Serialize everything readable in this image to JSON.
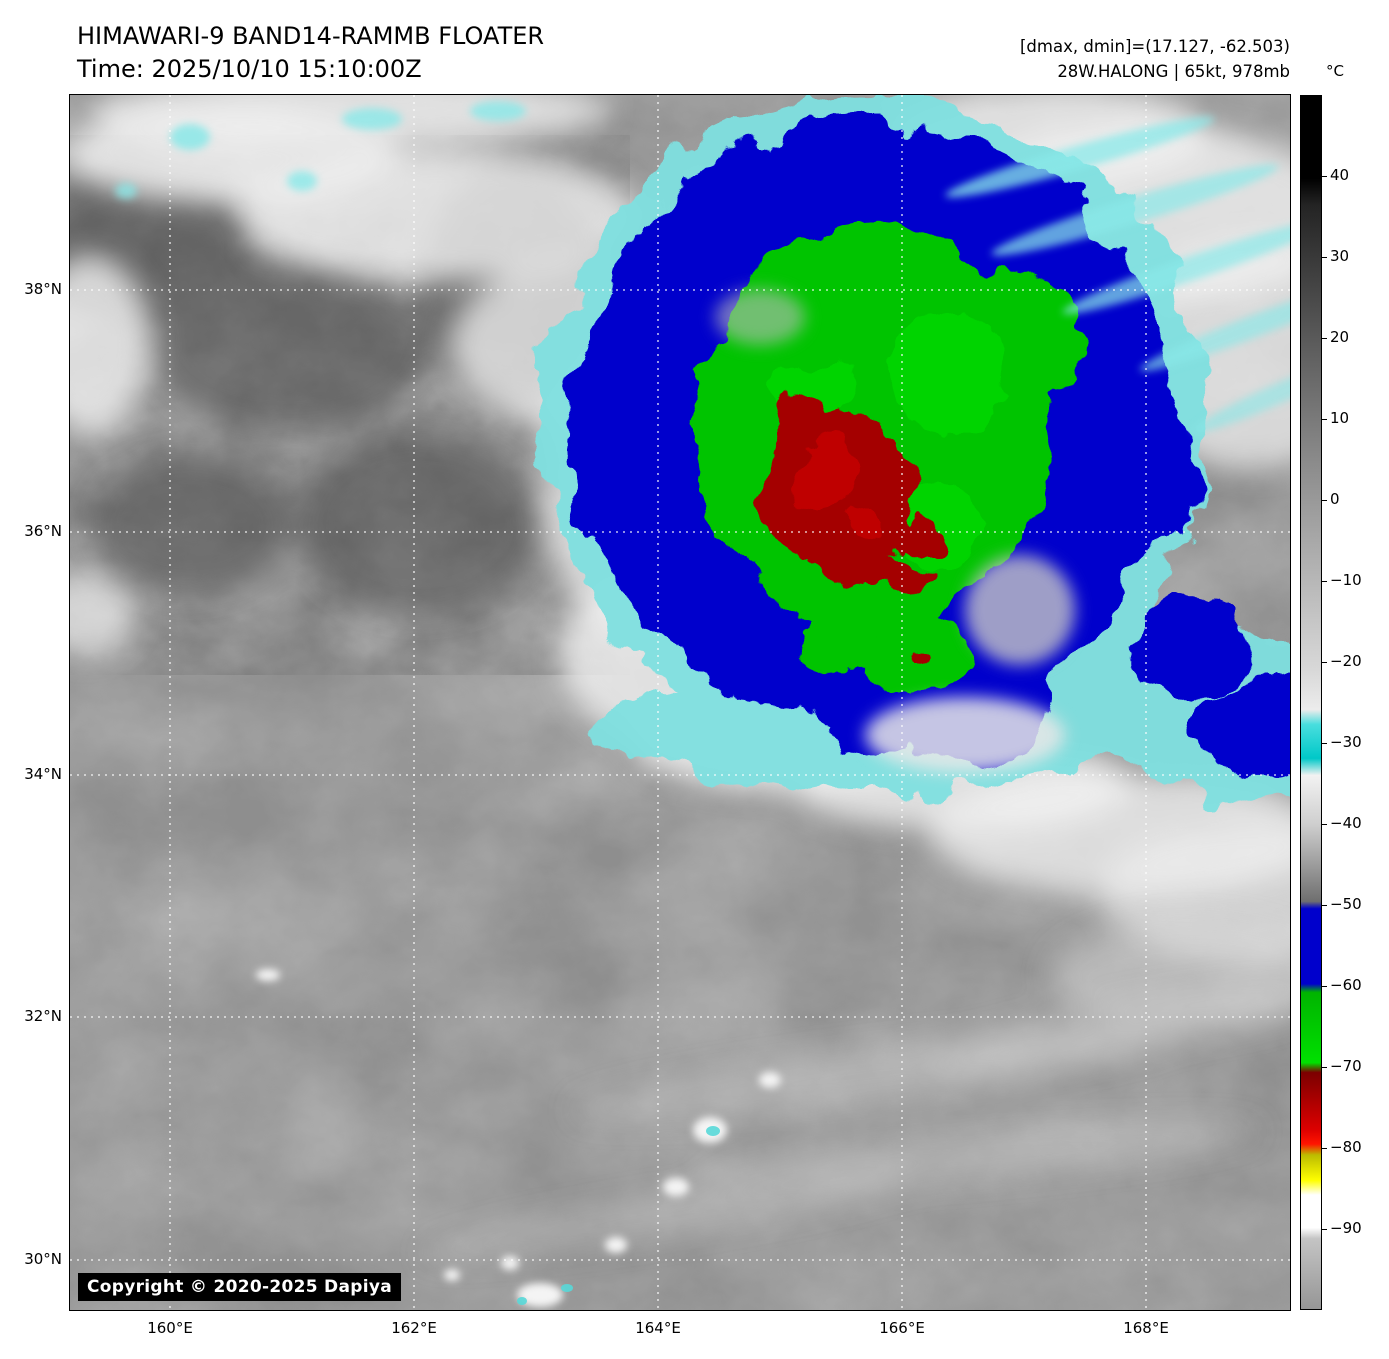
{
  "header": {
    "title": "HIMAWARI-9 BAND14-RAMMB FLOATER",
    "time": "Time: 2025/10/10 15:10:00Z",
    "range": "[dmax, dmin]=(17.127, -62.503)",
    "storm": "28W.HALONG | 65kt, 978mb"
  },
  "map": {
    "copyright": "Copyright © 2020-2025 Dapiya",
    "lat_labels": [
      "38°N",
      "36°N",
      "34°N",
      "32°N",
      "30°N"
    ],
    "lon_labels": [
      "160°E",
      "162°E",
      "164°E",
      "166°E",
      "168°E"
    ]
  },
  "colorbar": {
    "unit": "°C",
    "ticks": [
      "40",
      "30",
      "20",
      "10",
      "0",
      "−10",
      "−20",
      "−30",
      "−40",
      "−50",
      "−60",
      "−70",
      "−80",
      "−90"
    ],
    "segments": [
      {
        "range": "warm to −25",
        "color": "grayscale #000000→#ececec"
      },
      {
        "range": "≈ −30",
        "color": "#00c8c8"
      },
      {
        "range": "−30 to −50",
        "color": "grayscale #f2f2f2→#6f6f6f"
      },
      {
        "range": "−50 to −60",
        "color": "#0000cc"
      },
      {
        "range": "−60 to −70",
        "color": "#00cc00"
      },
      {
        "range": "−70 to −80",
        "color": "#7c0000→#ff1400"
      },
      {
        "range": "−80 to −87",
        "color": "#ffff00"
      },
      {
        "range": "−87 to −90",
        "color": "#ffffff"
      },
      {
        "range": "below −90",
        "color": "#c4c4c4→#969696"
      }
    ]
  },
  "palette": {
    "cyan": "#7fe0e0",
    "blue": "#0000cc",
    "green": "#00cc00",
    "red": "#a40000"
  }
}
